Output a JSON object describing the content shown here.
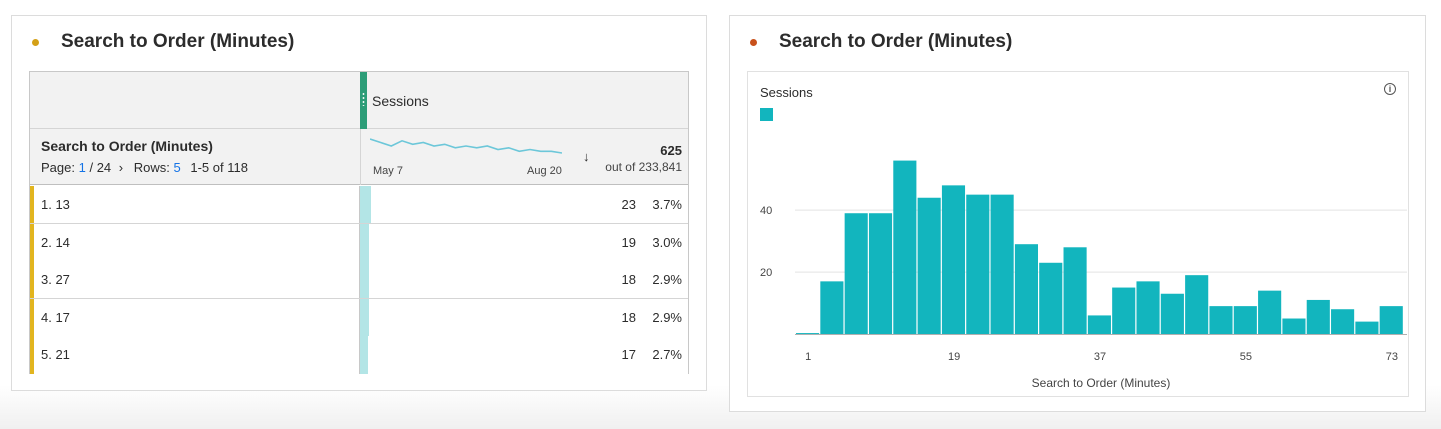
{
  "left_panel": {
    "title": "Search to Order (Minutes)",
    "dot_color": "#d4a017",
    "table": {
      "metric_header": "Sessions",
      "dimension_header": "Search to Order (Minutes)",
      "pager": {
        "page_label": "Page:",
        "page": "1",
        "page_total": "/ 24",
        "next_icon": "chevron-right-icon",
        "rows_label": "Rows:",
        "rows": "5",
        "range": "1-5 of 118"
      },
      "sparkline": {
        "start_label": "May 7",
        "end_label": "Aug 20",
        "values": [
          62,
          60,
          58,
          61,
          59,
          60,
          58,
          59,
          57,
          58,
          57,
          58,
          56,
          57,
          55,
          56,
          55,
          55,
          54
        ]
      },
      "sort_icon": "sort-descending-icon",
      "total": "625",
      "total_sub": "out of 233,841",
      "rows_data": [
        {
          "label": "1.  13",
          "value": "23",
          "pct": "3.7%",
          "fraction": 0.037
        },
        {
          "label": "2.  14",
          "value": "19",
          "pct": "3.0%",
          "fraction": 0.03
        },
        {
          "label": "3.  27",
          "value": "18",
          "pct": "2.9%",
          "fraction": 0.029
        },
        {
          "label": "4.  17",
          "value": "18",
          "pct": "2.9%",
          "fraction": 0.029
        },
        {
          "label": "5.  21",
          "value": "17",
          "pct": "2.7%",
          "fraction": 0.027
        }
      ]
    }
  },
  "right_panel": {
    "title": "Search to Order (Minutes)",
    "dot_color": "#c8511b",
    "info_icon": "info-icon",
    "chart_data": {
      "type": "bar",
      "title": "Search to Order (Minutes)",
      "legend": [
        "Sessions"
      ],
      "legend_position": "top-left",
      "series_color": "#12b5be",
      "xlabel": "Search to Order (Minutes)",
      "ylabel": "",
      "x_ticks": [
        "1",
        "19",
        "37",
        "55",
        "73"
      ],
      "y_ticks": [
        20,
        40
      ],
      "ylim": [
        0,
        62
      ],
      "grid": true,
      "categories": [
        1,
        4,
        7,
        10,
        13,
        16,
        19,
        22,
        25,
        28,
        31,
        34,
        37,
        40,
        43,
        46,
        49,
        52,
        55,
        58,
        61,
        64,
        67,
        70,
        73
      ],
      "values": [
        0.3,
        17,
        39,
        39,
        56,
        44,
        48,
        45,
        45,
        29,
        23,
        28,
        6,
        15,
        17,
        13,
        19,
        9,
        9,
        14,
        5,
        11,
        8,
        4,
        9
      ]
    }
  }
}
